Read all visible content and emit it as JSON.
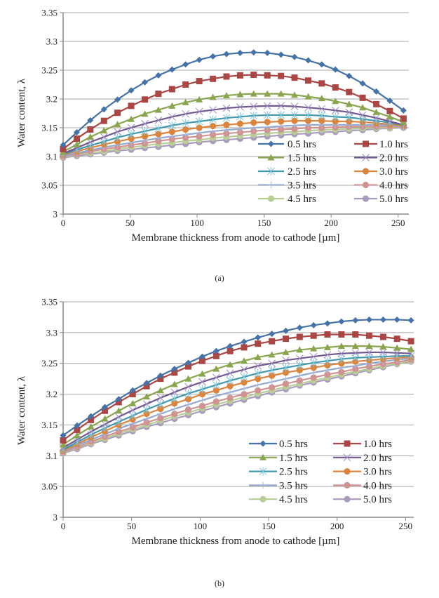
{
  "chart_data": [
    {
      "type": "line",
      "caption": "(a)",
      "xlabel": "Membrane thickness from anode to cathode [µm]",
      "ylabel": "Water content, λ",
      "xlim": [
        0,
        258
      ],
      "ylim": [
        3,
        3.35
      ],
      "xticks": [
        "0",
        "50",
        "100",
        "150",
        "200",
        "250"
      ],
      "yticks": [
        "3",
        "3.05",
        "3.1",
        "3.15",
        "3.2",
        "3.25",
        "3.3",
        "3.35"
      ],
      "grid": "horizontal",
      "legend_position": "bottom-right",
      "x": [
        0,
        10.2,
        20.3,
        30.5,
        40.6,
        50.8,
        61,
        71.1,
        81.3,
        91.4,
        101.6,
        111.8,
        121.9,
        132.1,
        142.2,
        152.4,
        162.6,
        172.7,
        182.9,
        193,
        203.2,
        213.4,
        223.5,
        233.7,
        243.8,
        254
      ],
      "series": [
        {
          "name": "0.5 hrs",
          "color": "#4572A7",
          "marker": "diamond",
          "values": [
            3.12,
            3.142,
            3.163,
            3.182,
            3.199,
            3.215,
            3.229,
            3.241,
            3.251,
            3.26,
            3.268,
            3.274,
            3.278,
            3.28,
            3.281,
            3.28,
            3.277,
            3.273,
            3.267,
            3.26,
            3.251,
            3.24,
            3.227,
            3.213,
            3.197,
            3.18
          ]
        },
        {
          "name": "1.0 hrs",
          "color": "#AA4643",
          "marker": "square",
          "values": [
            3.113,
            3.131,
            3.147,
            3.162,
            3.176,
            3.188,
            3.199,
            3.209,
            3.217,
            3.225,
            3.231,
            3.235,
            3.239,
            3.241,
            3.242,
            3.241,
            3.24,
            3.237,
            3.232,
            3.227,
            3.22,
            3.212,
            3.202,
            3.191,
            3.179,
            3.166
          ]
        },
        {
          "name": "1.5 hrs",
          "color": "#89A54E",
          "marker": "triangle",
          "values": [
            3.108,
            3.121,
            3.134,
            3.145,
            3.156,
            3.165,
            3.174,
            3.181,
            3.188,
            3.194,
            3.199,
            3.203,
            3.206,
            3.208,
            3.209,
            3.209,
            3.209,
            3.207,
            3.204,
            3.201,
            3.196,
            3.191,
            3.185,
            3.177,
            3.169,
            3.16
          ]
        },
        {
          "name": "2.0 hrs",
          "color": "#71588F",
          "marker": "x",
          "values": [
            3.105,
            3.115,
            3.125,
            3.134,
            3.143,
            3.15,
            3.157,
            3.163,
            3.169,
            3.174,
            3.178,
            3.181,
            3.184,
            3.186,
            3.187,
            3.188,
            3.188,
            3.187,
            3.185,
            3.183,
            3.18,
            3.177,
            3.172,
            3.167,
            3.161,
            3.155
          ]
        },
        {
          "name": "2.5 hrs",
          "color": "#4198AF",
          "marker": "asterisk",
          "values": [
            3.104,
            3.112,
            3.119,
            3.126,
            3.133,
            3.139,
            3.144,
            3.149,
            3.154,
            3.158,
            3.161,
            3.164,
            3.167,
            3.169,
            3.171,
            3.172,
            3.172,
            3.172,
            3.172,
            3.171,
            3.169,
            3.168,
            3.165,
            3.162,
            3.159,
            3.155
          ]
        },
        {
          "name": "3.0 hrs",
          "color": "#DB843D",
          "marker": "circle",
          "values": [
            3.103,
            3.109,
            3.115,
            3.121,
            3.126,
            3.131,
            3.135,
            3.139,
            3.143,
            3.147,
            3.15,
            3.153,
            3.155,
            3.157,
            3.159,
            3.16,
            3.161,
            3.162,
            3.162,
            3.162,
            3.161,
            3.161,
            3.16,
            3.158,
            3.156,
            3.154
          ]
        },
        {
          "name": "3.5 hrs",
          "color": "#93A9CF",
          "marker": "plus",
          "values": [
            3.101,
            3.106,
            3.111,
            3.116,
            3.12,
            3.124,
            3.128,
            3.132,
            3.135,
            3.138,
            3.141,
            3.144,
            3.146,
            3.148,
            3.15,
            3.151,
            3.153,
            3.154,
            3.155,
            3.155,
            3.155,
            3.155,
            3.155,
            3.155,
            3.154,
            3.153
          ]
        },
        {
          "name": "4.0 hrs",
          "color": "#D19392",
          "marker": "circle",
          "values": [
            3.1,
            3.104,
            3.109,
            3.113,
            3.116,
            3.12,
            3.123,
            3.127,
            3.13,
            3.133,
            3.135,
            3.138,
            3.14,
            3.142,
            3.144,
            3.146,
            3.147,
            3.148,
            3.15,
            3.15,
            3.151,
            3.152,
            3.152,
            3.152,
            3.152,
            3.152
          ]
        },
        {
          "name": "4.5 hrs",
          "color": "#B9CD96",
          "marker": "circle",
          "values": [
            3.099,
            3.103,
            3.106,
            3.109,
            3.113,
            3.116,
            3.119,
            3.122,
            3.124,
            3.127,
            3.129,
            3.132,
            3.134,
            3.136,
            3.138,
            3.14,
            3.142,
            3.143,
            3.145,
            3.146,
            3.147,
            3.148,
            3.149,
            3.15,
            3.15,
            3.151
          ]
        },
        {
          "name": "5.0 hrs",
          "color": "#A99BBD",
          "marker": "circle",
          "values": [
            3.098,
            3.101,
            3.104,
            3.107,
            3.11,
            3.112,
            3.115,
            3.117,
            3.12,
            3.122,
            3.125,
            3.127,
            3.129,
            3.131,
            3.133,
            3.135,
            3.137,
            3.139,
            3.14,
            3.142,
            3.143,
            3.145,
            3.146,
            3.148,
            3.149,
            3.15
          ]
        }
      ]
    },
    {
      "type": "line",
      "caption": "(b)",
      "xlabel": "Membrane thickness from anode to cathode [µm]",
      "ylabel": "Water content, λ",
      "xlim": [
        0,
        256
      ],
      "ylim": [
        3,
        3.35
      ],
      "xticks": [
        "0",
        "50",
        "100",
        "150",
        "200",
        "250"
      ],
      "yticks": [
        "3",
        "3.05",
        "3.1",
        "3.15",
        "3.2",
        "3.25",
        "3.3",
        "3.35"
      ],
      "grid": "horizontal",
      "legend_position": "bottom-right",
      "x": [
        0,
        10.2,
        20.3,
        30.5,
        40.6,
        50.8,
        61,
        71.1,
        81.3,
        91.4,
        101.6,
        111.8,
        121.9,
        132.1,
        142.2,
        152.4,
        162.6,
        172.7,
        182.9,
        193,
        203.2,
        213.4,
        223.5,
        233.7,
        243.8,
        254
      ],
      "series": [
        {
          "name": "0.5 hrs",
          "color": "#4572A7",
          "marker": "diamond",
          "values": [
            3.133,
            3.149,
            3.164,
            3.179,
            3.192,
            3.206,
            3.218,
            3.23,
            3.241,
            3.251,
            3.261,
            3.27,
            3.278,
            3.285,
            3.292,
            3.298,
            3.303,
            3.308,
            3.312,
            3.315,
            3.318,
            3.32,
            3.321,
            3.321,
            3.321,
            3.32
          ]
        },
        {
          "name": "1.0 hrs",
          "color": "#AA4643",
          "marker": "square",
          "values": [
            3.125,
            3.142,
            3.158,
            3.173,
            3.187,
            3.2,
            3.213,
            3.225,
            3.235,
            3.245,
            3.254,
            3.262,
            3.27,
            3.276,
            3.282,
            3.286,
            3.29,
            3.293,
            3.295,
            3.297,
            3.297,
            3.297,
            3.295,
            3.293,
            3.29,
            3.286
          ]
        },
        {
          "name": "1.5 hrs",
          "color": "#89A54E",
          "marker": "triangle",
          "values": [
            3.118,
            3.133,
            3.147,
            3.16,
            3.173,
            3.185,
            3.196,
            3.206,
            3.216,
            3.225,
            3.233,
            3.241,
            3.248,
            3.254,
            3.26,
            3.264,
            3.268,
            3.272,
            3.274,
            3.276,
            3.278,
            3.278,
            3.278,
            3.277,
            3.275,
            3.273
          ]
        },
        {
          "name": "2.0 hrs",
          "color": "#71588F",
          "marker": "x",
          "values": [
            3.113,
            3.126,
            3.139,
            3.151,
            3.163,
            3.174,
            3.184,
            3.194,
            3.203,
            3.212,
            3.22,
            3.227,
            3.234,
            3.24,
            3.246,
            3.25,
            3.255,
            3.258,
            3.261,
            3.264,
            3.266,
            3.267,
            3.268,
            3.268,
            3.267,
            3.266
          ]
        },
        {
          "name": "2.5 hrs",
          "color": "#4198AF",
          "marker": "asterisk",
          "values": [
            3.11,
            3.122,
            3.134,
            3.145,
            3.155,
            3.165,
            3.175,
            3.184,
            3.193,
            3.201,
            3.208,
            3.215,
            3.222,
            3.228,
            3.234,
            3.239,
            3.243,
            3.247,
            3.251,
            3.254,
            3.257,
            3.259,
            3.26,
            3.261,
            3.262,
            3.262
          ]
        },
        {
          "name": "3.0 hrs",
          "color": "#DB843D",
          "marker": "circle",
          "values": [
            3.108,
            3.119,
            3.13,
            3.14,
            3.15,
            3.159,
            3.168,
            3.176,
            3.185,
            3.192,
            3.2,
            3.206,
            3.213,
            3.219,
            3.225,
            3.23,
            3.235,
            3.239,
            3.243,
            3.247,
            3.25,
            3.253,
            3.255,
            3.257,
            3.259,
            3.26
          ]
        },
        {
          "name": "3.5 hrs",
          "color": "#93A9CF",
          "marker": "plus",
          "values": [
            3.107,
            3.117,
            3.126,
            3.135,
            3.144,
            3.152,
            3.16,
            3.168,
            3.176,
            3.183,
            3.19,
            3.197,
            3.203,
            3.209,
            3.215,
            3.22,
            3.225,
            3.23,
            3.235,
            3.239,
            3.243,
            3.246,
            3.25,
            3.253,
            3.256,
            3.258
          ]
        },
        {
          "name": "4.0 hrs",
          "color": "#D19392",
          "marker": "circle",
          "values": [
            3.106,
            3.114,
            3.123,
            3.131,
            3.139,
            3.146,
            3.154,
            3.161,
            3.168,
            3.175,
            3.181,
            3.188,
            3.194,
            3.2,
            3.206,
            3.211,
            3.217,
            3.222,
            3.227,
            3.232,
            3.236,
            3.241,
            3.245,
            3.249,
            3.252,
            3.256
          ]
        },
        {
          "name": "4.5 hrs",
          "color": "#B9CD96",
          "marker": "circle",
          "values": [
            3.105,
            3.113,
            3.121,
            3.128,
            3.136,
            3.143,
            3.15,
            3.157,
            3.164,
            3.17,
            3.177,
            3.183,
            3.189,
            3.195,
            3.201,
            3.206,
            3.212,
            3.217,
            3.222,
            3.227,
            3.232,
            3.237,
            3.241,
            3.246,
            3.25,
            3.254
          ]
        },
        {
          "name": "5.0 hrs",
          "color": "#A99BBD",
          "marker": "circle",
          "values": [
            3.104,
            3.111,
            3.119,
            3.126,
            3.133,
            3.14,
            3.147,
            3.153,
            3.16,
            3.166,
            3.173,
            3.179,
            3.185,
            3.191,
            3.197,
            3.203,
            3.208,
            3.214,
            3.219,
            3.224,
            3.229,
            3.234,
            3.239,
            3.244,
            3.249,
            3.253
          ]
        }
      ]
    }
  ]
}
